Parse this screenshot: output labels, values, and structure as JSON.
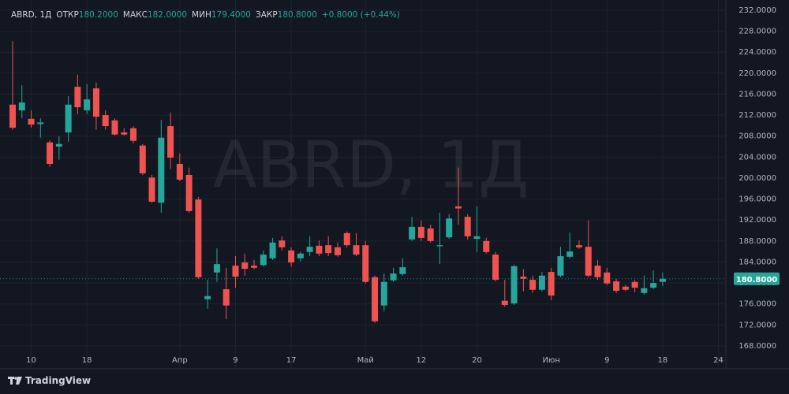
{
  "chart_data": {
    "type": "candlestick",
    "title": "ABRD, 1Д",
    "watermark": "ABRD, 1Д",
    "ohlc_header": [
      {
        "name": "ОТКР",
        "value": 180.2,
        "label": "180.2000"
      },
      {
        "name": "МАКС",
        "value": 182.0,
        "label": "182.0000"
      },
      {
        "name": "МИН",
        "value": 179.4,
        "label": "179.4000"
      },
      {
        "name": "ЗАКР",
        "value": 180.8,
        "label": "180.8000"
      }
    ],
    "change": "+0.8000 (+0.44%)",
    "last_price": {
      "value": 180.8,
      "label": "180.8000"
    },
    "brand": "TradingView",
    "up_color": "#26a69a",
    "down_color": "#ef5350",
    "grid": true,
    "ylim": [
      166.34,
      233.95
    ],
    "yticks": [
      {
        "value": 168,
        "label": "168.0000"
      },
      {
        "value": 172,
        "label": "172.0000"
      },
      {
        "value": 176,
        "label": "176.0000"
      },
      {
        "value": 180,
        "label": "180.0000"
      },
      {
        "value": 184,
        "label": "184.0000"
      },
      {
        "value": 188,
        "label": "188.0000"
      },
      {
        "value": 192,
        "label": "192.0000"
      },
      {
        "value": 196,
        "label": "196.0000"
      },
      {
        "value": 200,
        "label": "200.0000"
      },
      {
        "value": 204,
        "label": "204.0000"
      },
      {
        "value": 208,
        "label": "208.0000"
      },
      {
        "value": 212,
        "label": "212.0000"
      },
      {
        "value": 216,
        "label": "216.0000"
      },
      {
        "value": 220,
        "label": "220.0000"
      },
      {
        "value": 224,
        "label": "224.0000"
      },
      {
        "value": 228,
        "label": "228.0000"
      },
      {
        "value": 232,
        "label": "232.0000"
      }
    ],
    "categories": [
      null,
      null,
      "10",
      null,
      null,
      null,
      null,
      null,
      "18",
      null,
      null,
      null,
      null,
      null,
      null,
      null,
      null,
      null,
      "Апр",
      null,
      null,
      null,
      null,
      null,
      "9",
      null,
      null,
      null,
      null,
      null,
      "17",
      null,
      null,
      null,
      null,
      null,
      null,
      null,
      "Май",
      null,
      null,
      null,
      null,
      null,
      "12",
      null,
      null,
      null,
      null,
      null,
      "20",
      null,
      null,
      null,
      null,
      null,
      null,
      null,
      "Июн",
      null,
      null,
      null,
      null,
      null,
      "9",
      null,
      null,
      null,
      null,
      null,
      "18",
      null,
      null,
      null,
      null,
      null,
      "24"
    ],
    "open": [
      214.0,
      212.9,
      211.3,
      210.3,
      206.8,
      206.0,
      208.7,
      217.4,
      212.9,
      217.1,
      212.0,
      211.0,
      208.7,
      209.5,
      206.2,
      200.1,
      195.3,
      209.9,
      202.7,
      200.6,
      195.9,
      176.9,
      182.0,
      178.8,
      183.3,
      183.9,
      183.3,
      183.4,
      184.7,
      188.1,
      186.2,
      184.7,
      185.9,
      187.1,
      187.2,
      186.8,
      189.5,
      187.2,
      187.2,
      181.1,
      175.7,
      180.5,
      181.7,
      188.3,
      190.7,
      190.4,
      187.0,
      188.7,
      194.6,
      192.6,
      188.4,
      188.0,
      185.4,
      176.6,
      176.1,
      181.2,
      180.6,
      178.7,
      182.1,
      181.4,
      185.0,
      187.2,
      186.9,
      183.3,
      182.0,
      180.3,
      179.3,
      180.2,
      178.1,
      179.1,
      180.2,
      null,
      null,
      null,
      null,
      null,
      null
    ],
    "high": [
      226.1,
      217.7,
      212.9,
      211.4,
      207.2,
      208.0,
      215.6,
      219.7,
      217.9,
      218.2,
      212.9,
      211.4,
      209.5,
      209.9,
      206.5,
      200.6,
      211.1,
      212.5,
      204.7,
      202.0,
      196.4,
      180.6,
      186.6,
      182.9,
      185.1,
      185.6,
      184.4,
      186.2,
      188.6,
      188.9,
      186.8,
      185.9,
      188.9,
      188.1,
      188.9,
      187.7,
      189.8,
      189.5,
      188.0,
      181.4,
      181.8,
      182.9,
      184.7,
      192.6,
      191.9,
      191.1,
      193.4,
      193.1,
      202.0,
      193.1,
      194.6,
      188.6,
      185.9,
      180.6,
      183.5,
      182.6,
      181.4,
      182.1,
      182.9,
      186.9,
      189.6,
      188.1,
      191.9,
      184.4,
      182.9,
      180.8,
      179.6,
      180.6,
      181.4,
      182.4,
      182.0,
      null,
      null,
      null,
      null,
      null,
      null
    ],
    "low": [
      209.2,
      211.4,
      209.6,
      207.7,
      202.1,
      203.5,
      206.9,
      212.2,
      212.2,
      209.2,
      209.2,
      208.1,
      208.1,
      206.6,
      200.6,
      195.3,
      193.4,
      201.7,
      199.4,
      193.4,
      180.8,
      175.1,
      180.2,
      173.1,
      179.1,
      181.4,
      182.6,
      183.1,
      184.4,
      186.2,
      183.1,
      184.1,
      185.1,
      185.1,
      185.1,
      185.0,
      186.8,
      185.1,
      179.9,
      172.4,
      174.6,
      180.2,
      181.4,
      188.0,
      188.0,
      187.7,
      183.6,
      188.4,
      191.1,
      188.3,
      185.9,
      185.6,
      180.3,
      175.5,
      175.8,
      178.4,
      178.1,
      178.4,
      176.7,
      181.1,
      184.7,
      186.5,
      181.1,
      180.6,
      179.6,
      178.1,
      178.4,
      178.2,
      177.8,
      178.8,
      179.4,
      null,
      null,
      null,
      null,
      null,
      null
    ],
    "close": [
      209.6,
      214.4,
      210.2,
      210.6,
      202.7,
      206.5,
      214.0,
      213.5,
      215.0,
      211.7,
      209.9,
      208.3,
      208.3,
      207.1,
      200.9,
      195.5,
      207.7,
      203.9,
      199.7,
      193.7,
      181.1,
      177.5,
      183.6,
      175.7,
      181.2,
      182.7,
      182.9,
      185.4,
      187.7,
      186.8,
      183.9,
      185.6,
      186.9,
      185.6,
      185.7,
      185.3,
      187.2,
      185.4,
      180.2,
      172.7,
      180.2,
      181.8,
      183.0,
      190.7,
      188.6,
      188.0,
      187.2,
      192.3,
      194.2,
      188.9,
      188.9,
      185.9,
      180.6,
      175.8,
      183.2,
      180.8,
      178.7,
      181.4,
      177.6,
      185.1,
      186.0,
      186.8,
      181.4,
      181.1,
      179.9,
      178.5,
      178.7,
      179.1,
      179.0,
      180.0,
      180.8,
      null,
      null,
      null,
      null,
      null,
      null
    ]
  }
}
